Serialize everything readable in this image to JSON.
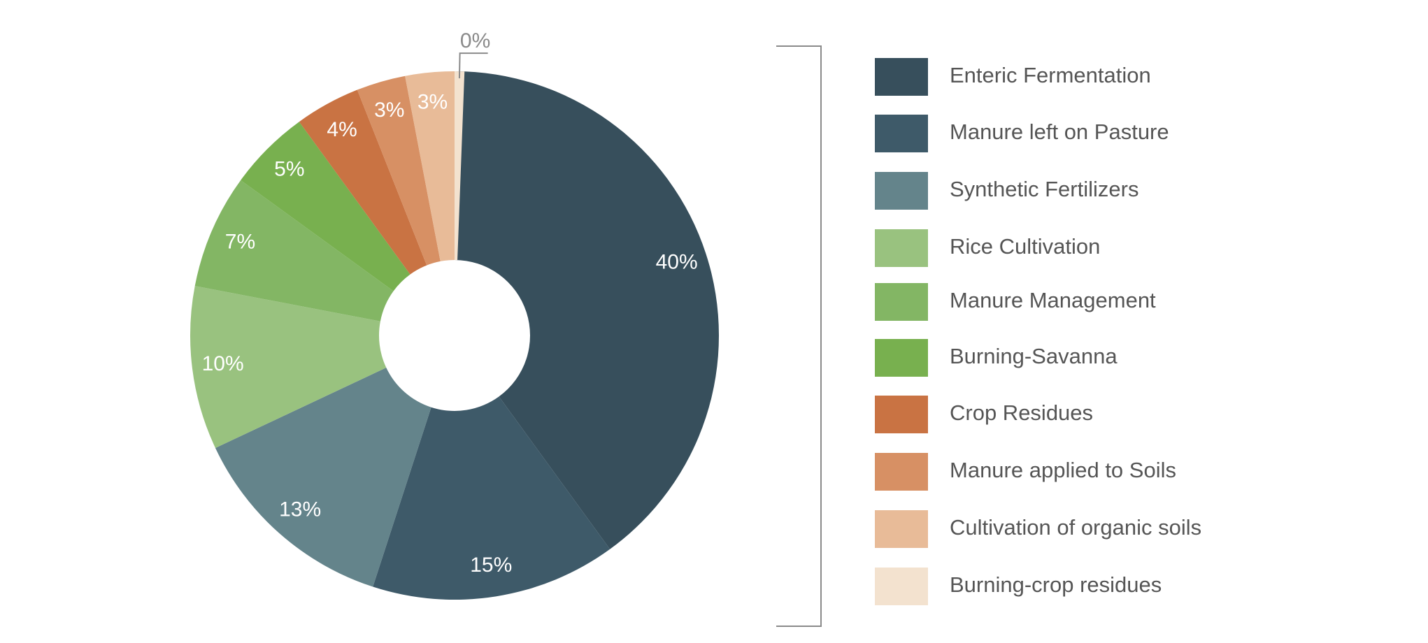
{
  "chart_data": {
    "type": "pie",
    "style": "donut",
    "labels": [
      "Enteric Fermentation",
      "Manure left on Pasture",
      " Synthetic Fertilizers",
      "Rice Cultivation",
      "Manure Management",
      "Burning-Savanna",
      "Crop Residues",
      "Manure applied to Soils",
      "Cultivation of organic soils",
      "Burning-crop residues"
    ],
    "values": [
      40,
      15,
      13,
      10,
      7,
      5,
      4,
      3,
      3,
      0
    ],
    "value_labels": [
      "40%",
      "15%",
      "13%",
      "10%",
      "7%",
      "5%",
      "4%",
      "3%",
      "3%",
      "0%"
    ],
    "colors": [
      "#374f5c",
      "#3e5a69",
      "#64848b",
      "#99c27f",
      "#83b664",
      "#78b04f",
      "#c97343",
      "#d79064",
      "#e8bb98",
      "#f3e2cf"
    ],
    "start_angle": "12 o'clock",
    "direction": "clockwise",
    "legend_position": "right",
    "title": ""
  }
}
